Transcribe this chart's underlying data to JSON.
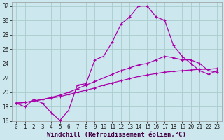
{
  "xlabel": "Windchill (Refroidissement éolien,°C)",
  "background_color": "#cce8ee",
  "grid_color": "#aacccc",
  "line_color": "#aa00aa",
  "xlim": [
    -0.5,
    23.5
  ],
  "ylim": [
    16,
    32.5
  ],
  "yticks": [
    16,
    18,
    20,
    22,
    24,
    26,
    28,
    30,
    32
  ],
  "xticks": [
    0,
    1,
    2,
    3,
    4,
    5,
    6,
    7,
    8,
    9,
    10,
    11,
    12,
    13,
    14,
    15,
    16,
    17,
    18,
    19,
    20,
    21,
    22,
    23
  ],
  "line1_x": [
    0,
    1,
    2,
    3,
    4,
    5,
    6,
    7,
    8,
    9,
    10,
    11,
    12,
    13,
    14,
    15,
    16,
    17,
    18,
    19,
    20,
    21,
    22,
    23
  ],
  "line1_y": [
    18.5,
    18.0,
    19.0,
    18.5,
    17.2,
    16.1,
    17.5,
    21.0,
    21.2,
    24.5,
    25.0,
    27.0,
    29.5,
    30.5,
    32.0,
    32.0,
    30.5,
    30.0,
    26.5,
    25.0,
    24.0,
    23.0,
    22.5,
    23.0
  ],
  "line2_x": [
    0,
    1,
    2,
    3,
    4,
    5,
    6,
    7,
    8,
    9,
    10,
    11,
    12,
    13,
    14,
    15,
    16,
    17,
    18,
    19,
    20,
    21,
    22,
    23
  ],
  "line2_y": [
    18.5,
    18.6,
    18.8,
    19.0,
    19.3,
    19.6,
    20.0,
    20.5,
    21.0,
    21.5,
    22.0,
    22.5,
    23.0,
    23.4,
    23.8,
    24.0,
    24.5,
    25.0,
    24.8,
    24.5,
    24.5,
    24.0,
    23.0,
    22.8
  ],
  "line3_x": [
    0,
    1,
    2,
    3,
    4,
    5,
    6,
    7,
    8,
    9,
    10,
    11,
    12,
    13,
    14,
    15,
    16,
    17,
    18,
    19,
    20,
    21,
    22,
    23
  ],
  "line3_y": [
    18.5,
    18.6,
    18.8,
    19.0,
    19.2,
    19.4,
    19.7,
    20.0,
    20.3,
    20.6,
    21.0,
    21.3,
    21.6,
    21.9,
    22.2,
    22.4,
    22.6,
    22.8,
    22.9,
    23.0,
    23.1,
    23.2,
    23.2,
    23.3
  ],
  "marker": "+",
  "markersize": 3,
  "linewidth": 0.9,
  "tick_fontsize": 5.5,
  "xlabel_fontsize": 6.5
}
